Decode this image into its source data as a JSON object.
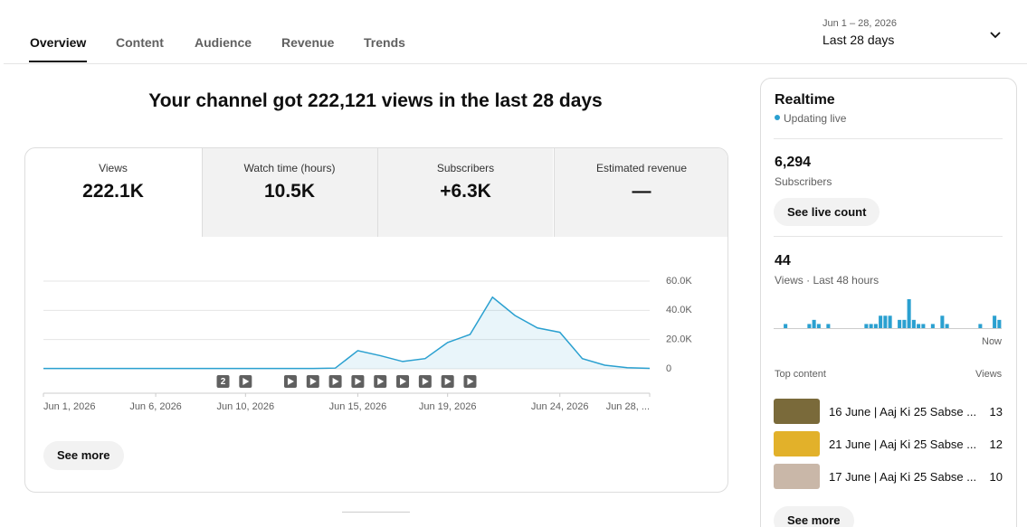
{
  "tabs": [
    "Overview",
    "Content",
    "Audience",
    "Revenue",
    "Trends"
  ],
  "active_tab": 0,
  "date_range": {
    "dates": "Jun 1 – 28, 2026",
    "label": "Last 28 days"
  },
  "headline": "Your channel got 222,121 views in the last 28 days",
  "metrics": [
    {
      "label": "Views",
      "value": "222.1K"
    },
    {
      "label": "Watch time (hours)",
      "value": "10.5K"
    },
    {
      "label": "Subscribers",
      "value": "+6.3K"
    },
    {
      "label": "Estimated revenue",
      "value": "—"
    }
  ],
  "overview_chart": {
    "type": "line",
    "color": "#2aa0d0",
    "x": [
      1,
      2,
      3,
      4,
      5,
      6,
      7,
      8,
      9,
      10,
      11,
      12,
      13,
      14,
      15,
      16,
      17,
      18,
      19,
      20,
      21,
      22,
      23,
      24,
      25,
      26,
      27,
      28
    ],
    "values": [
      200,
      200,
      200,
      200,
      200,
      200,
      200,
      200,
      200,
      200,
      200,
      200,
      200,
      500,
      12400,
      9000,
      5000,
      7000,
      18000,
      23500,
      49000,
      36500,
      28000,
      25000,
      7000,
      2500,
      800,
      300
    ],
    "xlim": [
      1,
      28
    ],
    "xticks": [
      {
        "value": 1,
        "label": "Jun 1, 2026"
      },
      {
        "value": 6,
        "label": "Jun 6, 2026"
      },
      {
        "value": 10,
        "label": "Jun 10, 2026"
      },
      {
        "value": 15,
        "label": "Jun 15, 2026"
      },
      {
        "value": 19,
        "label": "Jun 19, 2026"
      },
      {
        "value": 24,
        "label": "Jun 24, 2026"
      },
      {
        "value": 28,
        "label": "Jun 28, ..."
      }
    ],
    "ylim": [
      0,
      60000
    ],
    "yticks": [
      0,
      {
        "value": 20000,
        "label": "20.0K"
      },
      {
        "value": 40000,
        "label": "40.0K"
      },
      {
        "value": 60000,
        "label": "60.0K"
      }
    ],
    "grid": true,
    "video_markers": [
      {
        "x": 9,
        "label": "2"
      },
      {
        "x": 10
      },
      {
        "x": 12
      },
      {
        "x": 13
      },
      {
        "x": 14
      },
      {
        "x": 15
      },
      {
        "x": 16
      },
      {
        "x": 17
      },
      {
        "x": 18
      },
      {
        "x": 19
      },
      {
        "x": 20
      }
    ]
  },
  "see_more": "See more",
  "realtime": {
    "title": "Realtime",
    "status": "Updating live",
    "subscribers": "6,294",
    "subscribers_label": "Subscribers",
    "button": "See live count",
    "views": "44",
    "views_label": "Views · Last 48 hours",
    "chart": {
      "type": "bar",
      "color": "#2aa0d0",
      "end_label": "Now",
      "values": [
        0,
        0,
        1,
        0,
        0,
        0,
        0,
        1,
        2,
        1,
        0,
        1,
        0,
        0,
        0,
        0,
        0,
        0,
        0,
        1,
        1,
        1,
        3,
        3,
        3,
        0,
        2,
        2,
        7,
        2,
        1,
        1,
        0,
        1,
        0,
        3,
        1,
        0,
        0,
        0,
        0,
        0,
        0,
        1,
        0,
        0,
        3,
        2
      ]
    },
    "top_content": {
      "title": "Top content",
      "views_header": "Views",
      "items": [
        {
          "title": "16 June | Aaj Ki 25 Sabse ...",
          "views": 13
        },
        {
          "title": "21 June | Aaj Ki 25 Sabse ...",
          "views": 12
        },
        {
          "title": "17 June | Aaj Ki 25 Sabse ...",
          "views": 10
        }
      ]
    },
    "see_more": "See more"
  }
}
